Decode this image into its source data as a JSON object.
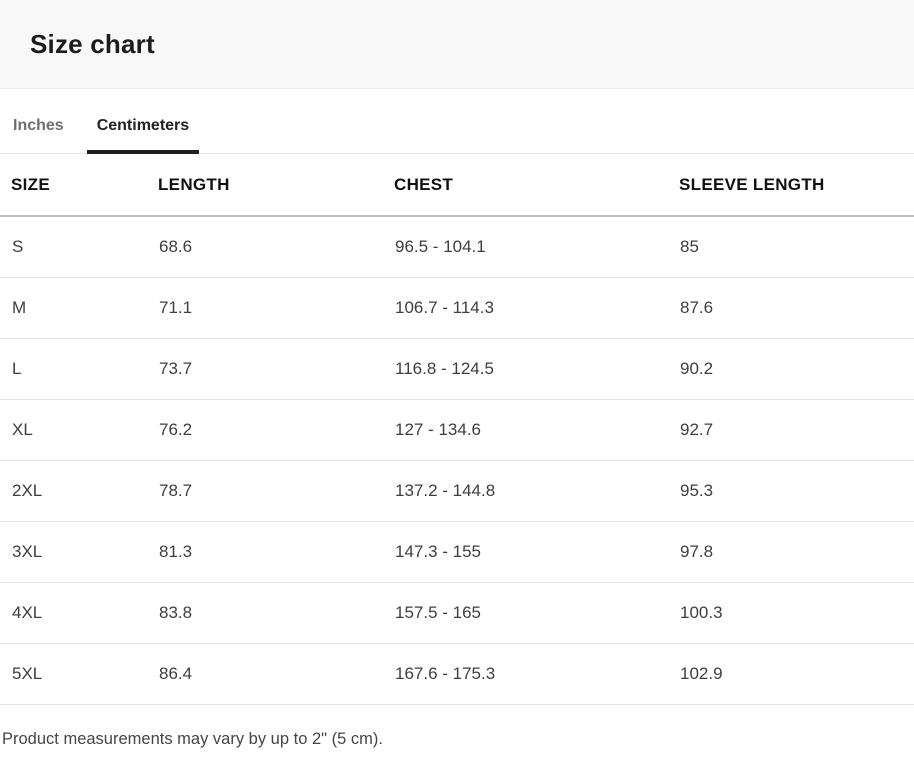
{
  "header": {
    "title": "Size chart"
  },
  "tabs": [
    {
      "label": "Inches",
      "active": false
    },
    {
      "label": "Centimeters",
      "active": true
    }
  ],
  "unit": "Centimeters",
  "table": {
    "columns": [
      "SIZE",
      "LENGTH",
      "CHEST",
      "SLEEVE LENGTH"
    ],
    "rows": [
      [
        "S",
        "68.6",
        "96.5 - 104.1",
        "85"
      ],
      [
        "M",
        "71.1",
        "106.7 - 114.3",
        "87.6"
      ],
      [
        "L",
        "73.7",
        "116.8 - 124.5",
        "90.2"
      ],
      [
        "XL",
        "76.2",
        "127 - 134.6",
        "92.7"
      ],
      [
        "2XL",
        "78.7",
        "137.2 - 144.8",
        "95.3"
      ],
      [
        "3XL",
        "81.3",
        "147.3 - 155",
        "97.8"
      ],
      [
        "4XL",
        "83.8",
        "157.5 - 165",
        "100.3"
      ],
      [
        "5XL",
        "86.4",
        "167.6 - 175.3",
        "102.9"
      ]
    ]
  },
  "footer": {
    "note": "Product measurements may vary by up to 2\" (5 cm)."
  },
  "colors": {
    "header_band_bg": "#f8f8f8",
    "active_tab_underline": "#1f1f1f",
    "inactive_tab_text": "#6f6f6f",
    "header_rule": "#bcbcbc",
    "row_rule": "#e5e5e5",
    "body_text": "#3e3e3e"
  }
}
